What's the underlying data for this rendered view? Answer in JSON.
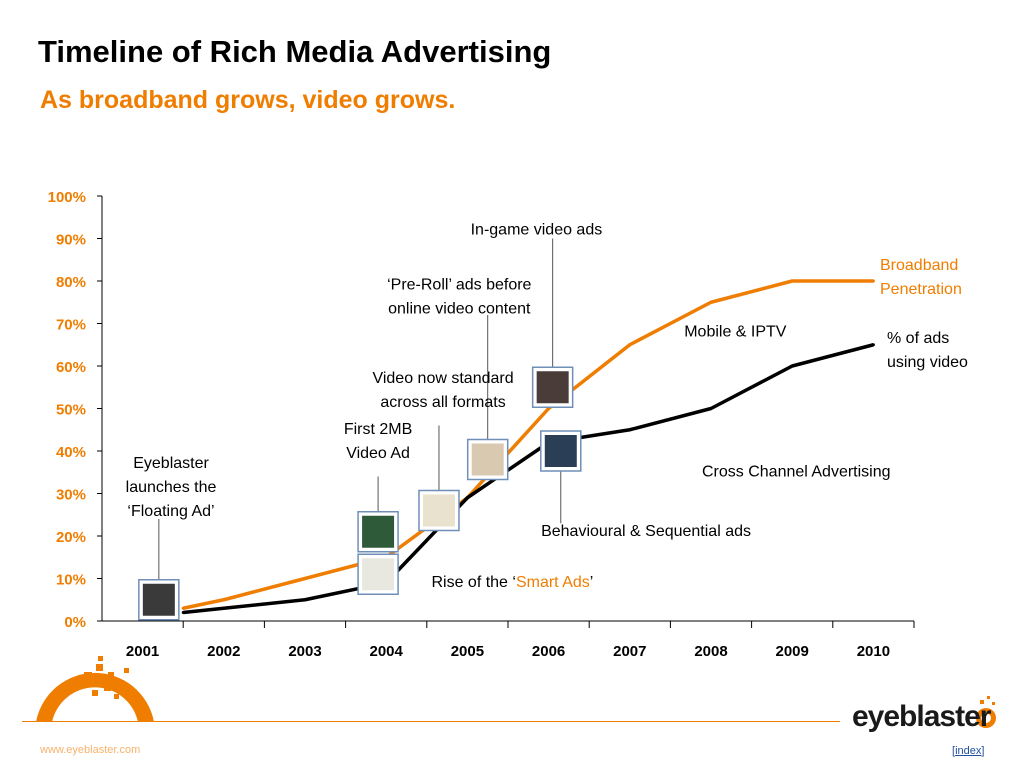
{
  "slide": {
    "title": "Timeline of Rich Media Advertising",
    "subtitle": "As broadband grows, video grows."
  },
  "chart_data": {
    "type": "line",
    "title": "",
    "xlabel": "",
    "ylabel": "",
    "categories": [
      "2001",
      "2002",
      "2003",
      "2004",
      "2005",
      "2006",
      "2007",
      "2008",
      "2009",
      "2010"
    ],
    "y_ticks": [
      "0%",
      "10%",
      "20%",
      "30%",
      "40%",
      "50%",
      "60%",
      "70%",
      "80%",
      "90%",
      "100%"
    ],
    "ylim": [
      0,
      100
    ],
    "grid": false,
    "series": [
      {
        "name": "Broadband Penetration",
        "name_lines": [
          "Broadband",
          "Penetration"
        ],
        "color": "#ef7d00",
        "x": [
          2001.5,
          2002,
          2003,
          2004,
          2005,
          2006,
          2007,
          2008,
          2009,
          2010
        ],
        "values": [
          3,
          5,
          10,
          15,
          29,
          50,
          65,
          75,
          80,
          80
        ]
      },
      {
        "name": "% of ads using video",
        "name_lines": [
          "% of ads",
          "using video"
        ],
        "color": "#000000",
        "x": [
          2001.5,
          2002,
          2003,
          2004,
          2005,
          2006,
          2007,
          2008,
          2009,
          2010
        ],
        "values": [
          2,
          3,
          5,
          9,
          29,
          42,
          45,
          50,
          60,
          65
        ]
      }
    ],
    "annotations": [
      {
        "lines": [
          "In-game video ads"
        ],
        "anchor": "middle",
        "x": 2005.85,
        "y": 91,
        "color": "#000"
      },
      {
        "lines": [
          "‘Pre-Roll’ ads before",
          "online video content"
        ],
        "anchor": "middle",
        "x": 2004.9,
        "y": 78,
        "color": "#000"
      },
      {
        "lines": [
          "Video now standard",
          "across all formats"
        ],
        "anchor": "middle",
        "x": 2004.7,
        "y": 56,
        "color": "#000"
      },
      {
        "lines": [
          "First 2MB",
          "Video Ad"
        ],
        "anchor": "middle",
        "x": 2003.9,
        "y": 44,
        "color": "#000"
      },
      {
        "lines": [
          "Eyeblaster",
          "launches the",
          "‘Floating Ad’"
        ],
        "anchor": "middle",
        "x": 2001.35,
        "y": 36,
        "color": "#000"
      },
      {
        "lines": [
          "Mobile & IPTV"
        ],
        "anchor": "middle",
        "x": 2008.3,
        "y": 67,
        "color": "#000"
      },
      {
        "lines": [
          "Cross Channel Advertising"
        ],
        "anchor": "middle",
        "x": 2009.05,
        "y": 34,
        "color": "#000"
      },
      {
        "lines": [
          "Behavioural & Sequential ads"
        ],
        "anchor": "middle",
        "x": 2007.2,
        "y": 20,
        "color": "#000"
      }
    ],
    "rich_annotation": {
      "prefix": "Rise of the ‘",
      "highlight": "Smart Ads",
      "suffix": "’",
      "highlight_color": "#ef7d00",
      "x": 2005.0,
      "y": 8
    },
    "thumbnails": [
      {
        "name": "floating-ad-thumbnail",
        "x": 2001.2,
        "y": 5,
        "leader_y": 24
      },
      {
        "name": "first-video-ad-thumbnail-1",
        "x": 2003.9,
        "y": 21,
        "leader_y": 34
      },
      {
        "name": "first-video-ad-thumbnail-2",
        "x": 2003.9,
        "y": 11,
        "leader_y": null
      },
      {
        "name": "video-standard-thumbnail",
        "x": 2004.65,
        "y": 26,
        "leader_y": 46
      },
      {
        "name": "pre-roll-thumbnail",
        "x": 2005.25,
        "y": 38,
        "leader_y": 72
      },
      {
        "name": "in-game-thumbnail",
        "x": 2006.05,
        "y": 55,
        "leader_y": 90
      },
      {
        "name": "behavioural-thumbnail",
        "x": 2006.15,
        "y": 40,
        "leader_y": 23
      }
    ]
  },
  "footer": {
    "url": "www.eyeblaster.com",
    "index_open": "[",
    "index_label": "index",
    "index_close": "]",
    "logo_text": "eyeblaster"
  }
}
